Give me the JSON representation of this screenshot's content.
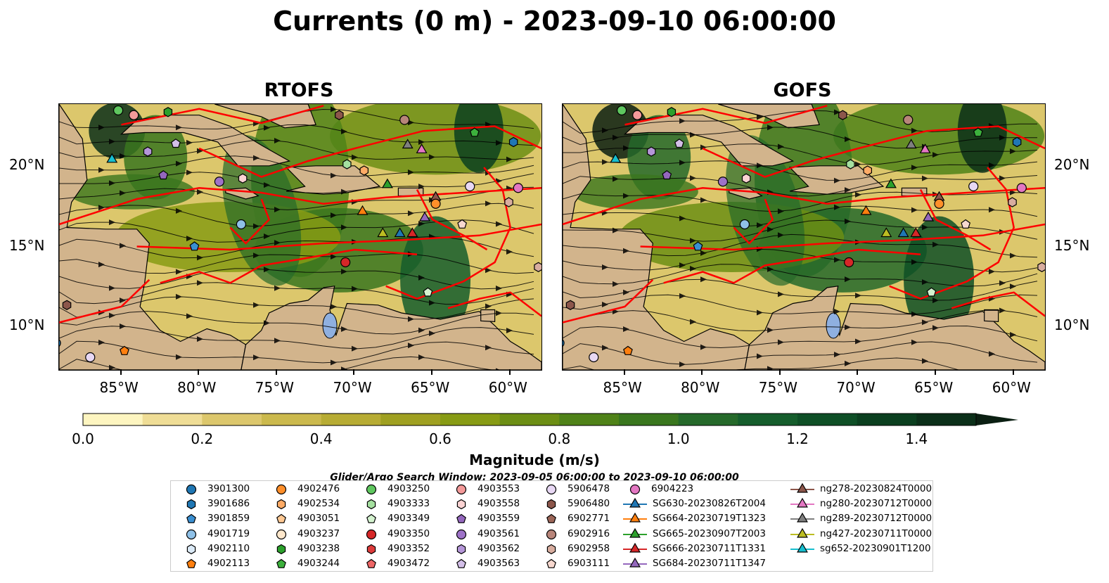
{
  "title": "Currents (0 m) - 2023-09-10 06:00:00",
  "panels": [
    {
      "title": "RTOFS"
    },
    {
      "title": "GOFS"
    }
  ],
  "x_ticks": [
    "85°W",
    "80°W",
    "75°W",
    "70°W",
    "65°W",
    "60°W"
  ],
  "y_ticks": [
    "20°N",
    "15°N",
    "10°N"
  ],
  "colorbar": {
    "label": "Magnitude (m/s)",
    "ticks": [
      "0.0",
      "0.2",
      "0.4",
      "0.6",
      "0.8",
      "1.0",
      "1.2",
      "1.4"
    ],
    "colors": [
      "#fdf5c0",
      "#efdd96",
      "#dcc76c",
      "#cbb94d",
      "#b7ac34",
      "#9fa021",
      "#879b14",
      "#6c8e14",
      "#4f8218",
      "#39761e",
      "#25692a",
      "#155d2c",
      "#0e4f26",
      "#0b3f1f",
      "#0b2f19",
      "#0b1f12"
    ]
  },
  "search_window": "Glider/Argo Search Window: 2023-09-05 06:00:00 to 2023-09-10 06:00:00",
  "legend": [
    {
      "label": "3901300",
      "marker": "circle",
      "color": "#1f77b4"
    },
    {
      "label": "3901686",
      "marker": "hexagon",
      "color": "#1f77b4"
    },
    {
      "label": "3901859",
      "marker": "pentagon",
      "color": "#3a8fd1"
    },
    {
      "label": "4901719",
      "marker": "circle",
      "color": "#8fc1e8"
    },
    {
      "label": "4902110",
      "marker": "hexagon",
      "color": "#dbeaf7"
    },
    {
      "label": "4902113",
      "marker": "pentagon",
      "color": "#ff7f0e"
    },
    {
      "label": "4902476",
      "marker": "circle",
      "color": "#ff8f2a"
    },
    {
      "label": "4902534",
      "marker": "hexagon",
      "color": "#ffab66"
    },
    {
      "label": "4903051",
      "marker": "pentagon",
      "color": "#ffc994"
    },
    {
      "label": "4903237",
      "marker": "circle",
      "color": "#ffe8cc"
    },
    {
      "label": "4903238",
      "marker": "hexagon",
      "color": "#2ca02c"
    },
    {
      "label": "4903244",
      "marker": "pentagon",
      "color": "#3cb03c"
    },
    {
      "label": "4903250",
      "marker": "circle",
      "color": "#5fc75f"
    },
    {
      "label": "4903333",
      "marker": "hexagon",
      "color": "#a5e0a0"
    },
    {
      "label": "4903349",
      "marker": "pentagon",
      "color": "#d4f2cf"
    },
    {
      "label": "4903350",
      "marker": "circle",
      "color": "#d62728"
    },
    {
      "label": "4903352",
      "marker": "hexagon",
      "color": "#dd3b3b"
    },
    {
      "label": "4903472",
      "marker": "pentagon",
      "color": "#ee6666"
    },
    {
      "label": "4903553",
      "marker": "circle",
      "color": "#f49a9a"
    },
    {
      "label": "4903558",
      "marker": "hexagon",
      "color": "#fbd3d3"
    },
    {
      "label": "4903559",
      "marker": "pentagon",
      "color": "#9467bd"
    },
    {
      "label": "4903561",
      "marker": "circle",
      "color": "#9e72c8"
    },
    {
      "label": "4903562",
      "marker": "hexagon",
      "color": "#b596d8"
    },
    {
      "label": "4903563",
      "marker": "pentagon",
      "color": "#d3bfe8"
    },
    {
      "label": "5906478",
      "marker": "circle",
      "color": "#e8d8f4"
    },
    {
      "label": "5906480",
      "marker": "hexagon",
      "color": "#8c564b"
    },
    {
      "label": "6902771",
      "marker": "pentagon",
      "color": "#9c6658"
    },
    {
      "label": "6902916",
      "marker": "circle",
      "color": "#b8857a"
    },
    {
      "label": "6902958",
      "marker": "hexagon",
      "color": "#d8ad9f"
    },
    {
      "label": "6903111",
      "marker": "pentagon",
      "color": "#f7d8cf"
    },
    {
      "label": "6904223",
      "marker": "circle",
      "color": "#e377c2"
    },
    {
      "label": "SG630-20230826T2004",
      "marker": "triangle-line",
      "color": "#1f77b4"
    },
    {
      "label": "SG664-20230719T1323",
      "marker": "triangle-line",
      "color": "#ff7f0e"
    },
    {
      "label": "SG665-20230907T2003",
      "marker": "triangle-line",
      "color": "#2ca02c"
    },
    {
      "label": "SG666-20230711T1331",
      "marker": "triangle-line",
      "color": "#d62728"
    },
    {
      "label": "SG684-20230711T1347",
      "marker": "triangle-line",
      "color": "#9467bd"
    },
    {
      "label": "ng278-20230824T0000",
      "marker": "triangle-line",
      "color": "#8c564b"
    },
    {
      "label": "ng280-20230712T0000",
      "marker": "triangle-line",
      "color": "#e377c2"
    },
    {
      "label": "ng289-20230712T0000",
      "marker": "triangle-line",
      "color": "#7f7f7f"
    },
    {
      "label": "ng427-20230711T0000",
      "marker": "triangle-line",
      "color": "#bcbd22"
    },
    {
      "label": "sg652-20230901T1200",
      "marker": "triangle-line",
      "color": "#17becf"
    }
  ],
  "markers": [
    {
      "label": "4903250",
      "lon": -85.2,
      "lat": 23.4
    },
    {
      "label": "4903553",
      "lon": -84.2,
      "lat": 23.1
    },
    {
      "label": "4903238",
      "lon": -82.0,
      "lat": 23.3
    },
    {
      "label": "5906480",
      "lon": -71.0,
      "lat": 23.1
    },
    {
      "label": "6902916",
      "lon": -66.8,
      "lat": 22.8
    },
    {
      "label": "4903244",
      "lon": -62.3,
      "lat": 22.0
    },
    {
      "label": "3901686",
      "lon": -59.8,
      "lat": 21.4
    },
    {
      "label": "sg652-20230901T1200",
      "lon": -85.6,
      "lat": 20.3
    },
    {
      "label": "4903562",
      "lon": -83.3,
      "lat": 20.8
    },
    {
      "label": "4903563",
      "lon": -81.5,
      "lat": 21.3
    },
    {
      "label": "ng289-20230712T0000",
      "lon": -66.6,
      "lat": 21.2
    },
    {
      "label": "ng280-20230712T0000",
      "lon": -65.7,
      "lat": 20.9
    },
    {
      "label": "4903559",
      "lon": -82.3,
      "lat": 19.3
    },
    {
      "label": "4903561",
      "lon": -78.7,
      "lat": 18.9
    },
    {
      "label": "4903558",
      "lon": -77.2,
      "lat": 19.1
    },
    {
      "label": "4903333",
      "lon": -70.5,
      "lat": 20.0
    },
    {
      "label": "4902534",
      "lon": -69.4,
      "lat": 19.6
    },
    {
      "label": "SG665-20230907T2003",
      "lon": -67.9,
      "lat": 18.7
    },
    {
      "label": "6904223",
      "lon": -59.5,
      "lat": 18.5
    },
    {
      "label": "5906478",
      "lon": -62.6,
      "lat": 18.6
    },
    {
      "label": "ng278-20230824T0000",
      "lon": -64.8,
      "lat": 17.9
    },
    {
      "label": "4902476",
      "lon": -64.8,
      "lat": 17.5
    },
    {
      "label": "6902958",
      "lon": -60.1,
      "lat": 17.6
    },
    {
      "label": "SG664-20230719T1323",
      "lon": -69.5,
      "lat": 17.0
    },
    {
      "label": "SG684-20230711T1347",
      "lon": -65.5,
      "lat": 16.6
    },
    {
      "label": "6903111",
      "lon": -63.1,
      "lat": 16.2
    },
    {
      "label": "4901719",
      "lon": -77.3,
      "lat": 16.2
    },
    {
      "label": "3901859",
      "lon": -80.3,
      "lat": 14.8
    },
    {
      "label": "ng427-20230711T0000",
      "lon": -68.2,
      "lat": 15.6
    },
    {
      "label": "SG630-20230826T2004",
      "lon": -67.1,
      "lat": 15.6
    },
    {
      "label": "SG666-20230711T1331",
      "lon": -66.3,
      "lat": 15.6
    },
    {
      "label": "4903350",
      "lon": -70.6,
      "lat": 13.8
    },
    {
      "label": "4903349",
      "lon": -65.3,
      "lat": 11.9
    },
    {
      "label": "5906478",
      "lon": -87.0,
      "lat": 7.8
    },
    {
      "label": "4902113",
      "lon": -84.8,
      "lat": 8.2
    },
    {
      "label": "3901300",
      "lon": -89.2,
      "lat": 8.7
    },
    {
      "label": "5906480",
      "lon": -88.5,
      "lat": 11.1
    },
    {
      "label": "6902958",
      "lon": -58.2,
      "lat": 13.5
    }
  ]
}
